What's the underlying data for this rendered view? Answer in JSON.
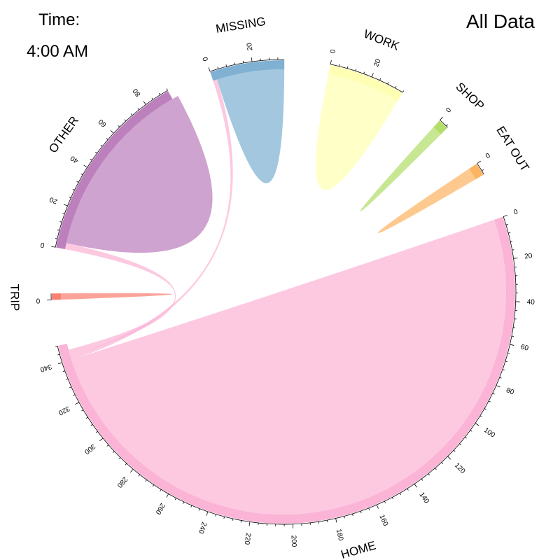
{
  "header": {
    "time_label": "Time:",
    "time_value": "4:00 AM",
    "dataset_label": "All Data"
  },
  "chart_data": {
    "type": "chord",
    "title": "",
    "groups": [
      {
        "name": "HOME",
        "value": 348,
        "tick_step": 20,
        "color": "#FBB4D6"
      },
      {
        "name": "TRIP",
        "value": 3,
        "tick_step": 20,
        "color": "#FB8072"
      },
      {
        "name": "OTHER",
        "value": 92,
        "tick_step": 20,
        "color": "#BC80BD"
      },
      {
        "name": "MISSING",
        "value": 35,
        "tick_step": 20,
        "color": "#80B1D3"
      },
      {
        "name": "WORK",
        "value": 36,
        "tick_step": 20,
        "color": "#FFFFB3"
      },
      {
        "name": "SHOP",
        "value": 5,
        "tick_step": 20,
        "color": "#B3DE69"
      },
      {
        "name": "EAT OUT",
        "value": 6,
        "tick_step": 20,
        "color": "#FDB462"
      }
    ],
    "chords": [
      {
        "from": "HOME",
        "to": "HOME",
        "value": 340
      },
      {
        "from": "HOME",
        "to": "MISSING",
        "value": 2
      },
      {
        "from": "HOME",
        "to": "OTHER",
        "value": 3
      },
      {
        "from": "TRIP",
        "to": "TRIP",
        "value": 3
      },
      {
        "from": "OTHER",
        "to": "OTHER",
        "value": 92
      },
      {
        "from": "MISSING",
        "to": "MISSING",
        "value": 33
      },
      {
        "from": "WORK",
        "to": "WORK",
        "value": 36
      },
      {
        "from": "SHOP",
        "to": "SHOP",
        "value": 5
      },
      {
        "from": "EAT OUT",
        "to": "EAT OUT",
        "value": 6
      }
    ]
  }
}
